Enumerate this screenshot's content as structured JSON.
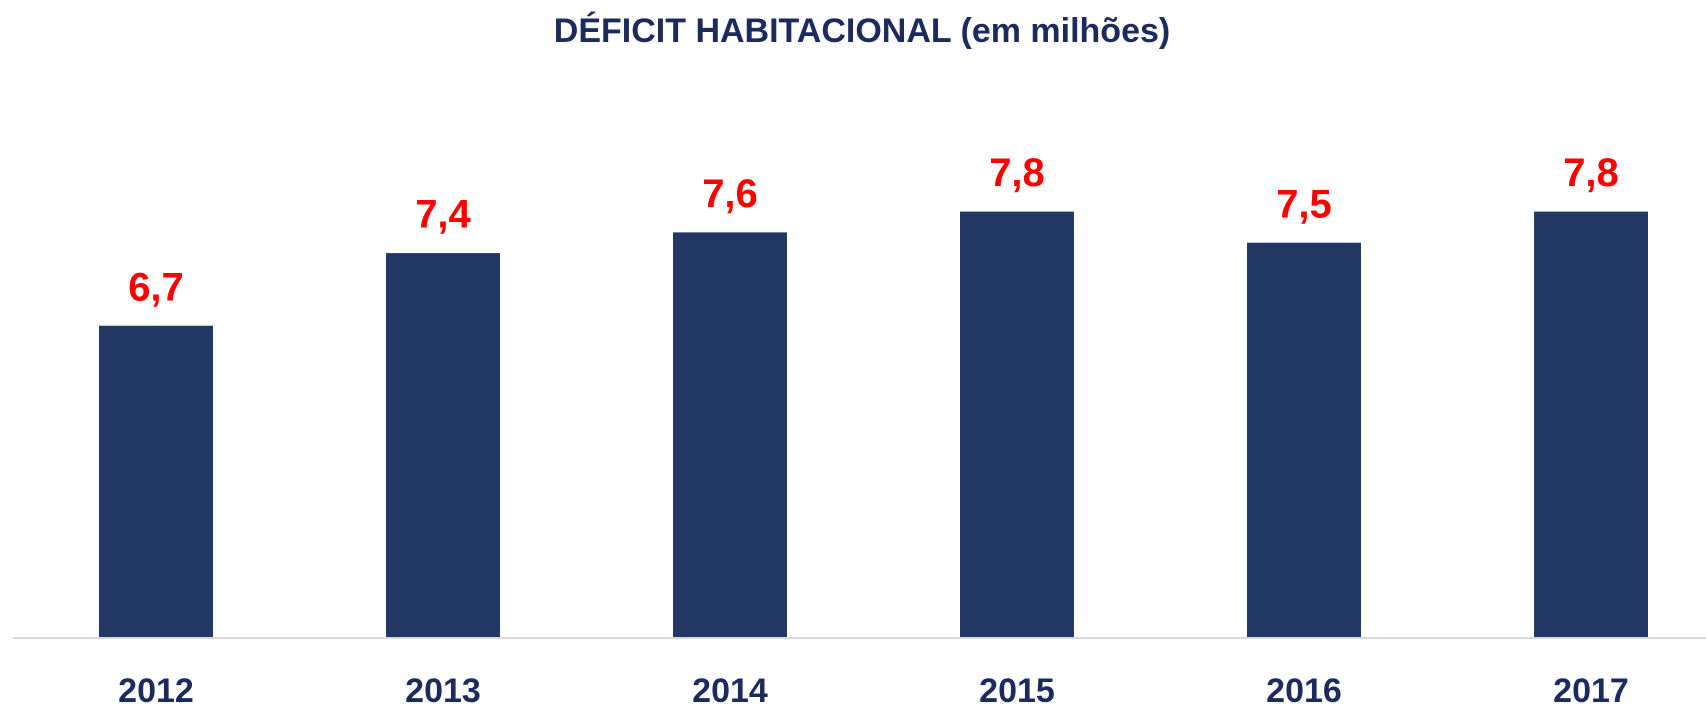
{
  "chart_data": {
    "type": "bar",
    "title": "DÉFICIT HABITACIONAL (em milhões)",
    "categories": [
      "2012",
      "2013",
      "2014",
      "2015",
      "2016",
      "2017"
    ],
    "values": [
      6.7,
      7.4,
      7.6,
      7.8,
      7.5,
      7.8
    ],
    "value_labels": [
      "6,7",
      "7,4",
      "7,6",
      "7,8",
      "7,5",
      "7,8"
    ],
    "color": "#213864",
    "label_color": "#ff0000",
    "ylim": [
      3.7,
      8.5
    ]
  }
}
